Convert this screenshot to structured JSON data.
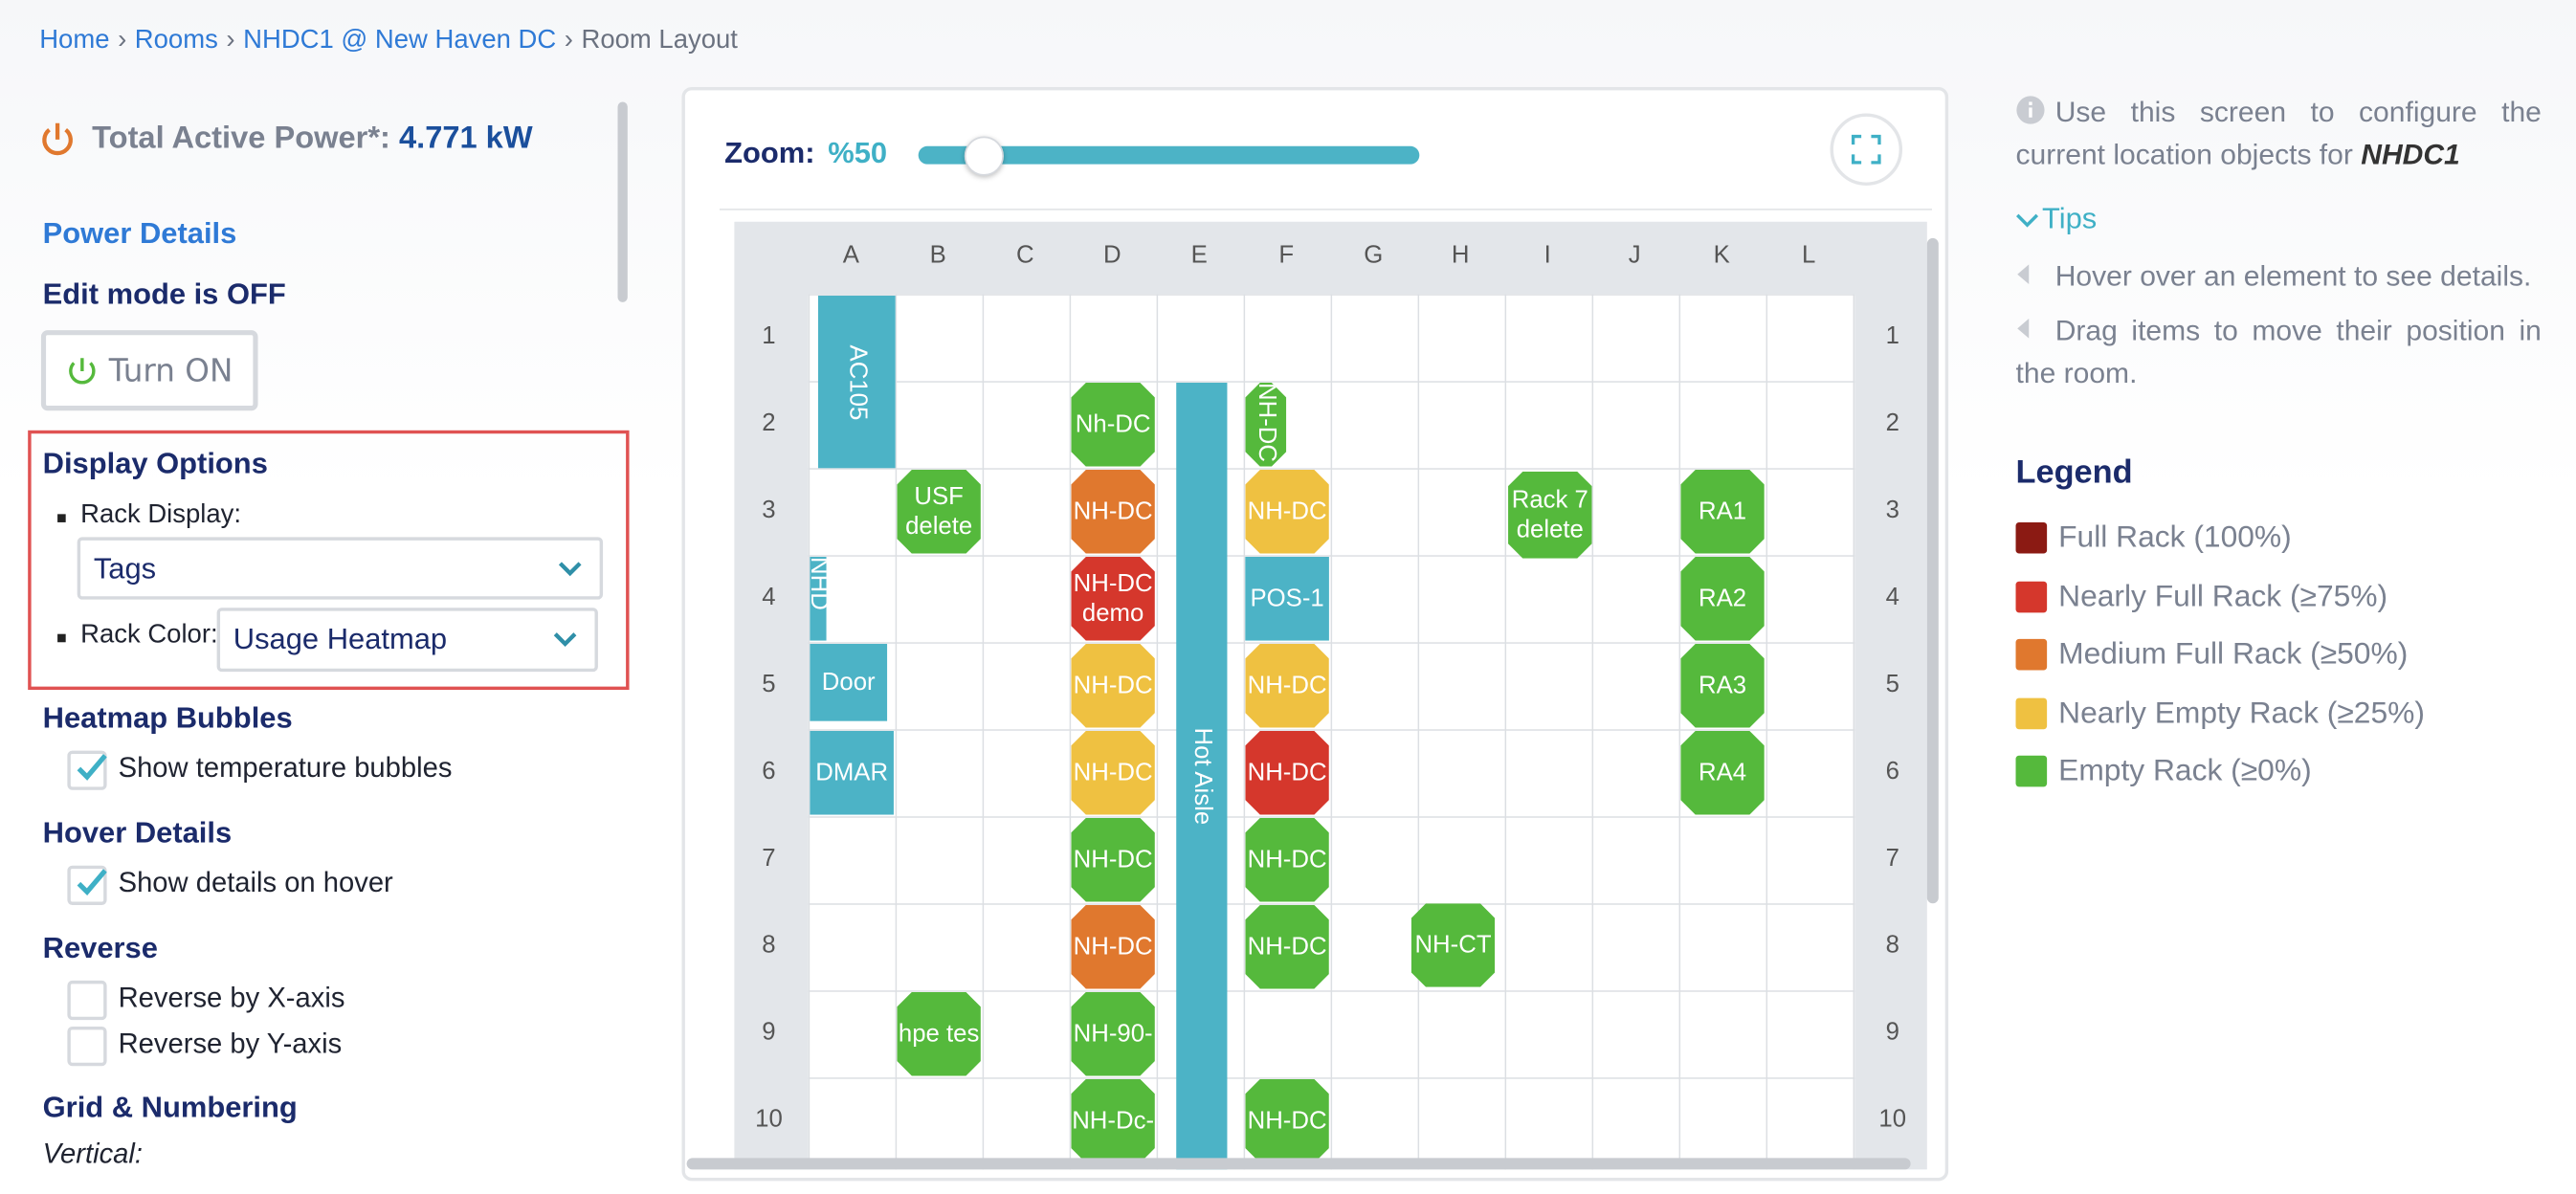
{
  "breadcrumb": {
    "items": [
      "Home",
      "Rooms",
      "NHDC1 @ New Haven DC",
      "Room Layout"
    ],
    "separator": "›"
  },
  "sidebar": {
    "power_label": "Total Active Power*:",
    "power_value": "4.771 kW",
    "power_details": "Power Details",
    "edit_mode": "Edit mode is OFF",
    "edit_button": "Turn ON",
    "display_options": {
      "title": "Display Options",
      "rack_display_label": "Rack Display:",
      "rack_display_value": "Tags",
      "rack_color_label": "Rack Color:",
      "rack_color_value": "Usage Heatmap"
    },
    "sections": [
      {
        "title": "Heatmap Bubbles",
        "options": [
          {
            "label": "Show temperature bubbles",
            "checked": true
          }
        ]
      },
      {
        "title": "Hover Details",
        "options": [
          {
            "label": "Show details on hover",
            "checked": true
          }
        ]
      },
      {
        "title": "Reverse",
        "options": [
          {
            "label": "Reverse by X-axis",
            "checked": false
          },
          {
            "label": "Reverse by Y-axis",
            "checked": false
          }
        ]
      }
    ],
    "grid_title": "Grid & Numbering",
    "vertical_label": "Vertical:"
  },
  "room": {
    "zoom_label": "Zoom:",
    "zoom_value": "%50",
    "columns": [
      "A",
      "B",
      "C",
      "D",
      "E",
      "F",
      "G",
      "H",
      "I",
      "J",
      "K",
      "L"
    ],
    "rows": [
      1,
      2,
      3,
      4,
      5,
      6,
      7,
      8,
      9,
      10
    ],
    "objects": [
      {
        "label": "AC105",
        "color": "#4cb3c6"
      },
      {
        "label": "Nh-DC",
        "color": "#55b93c"
      },
      {
        "label": "NH-DC",
        "color": "#55b93c"
      },
      {
        "label": "USF\ndelete",
        "color": "#55b93c"
      },
      {
        "label": "NH-DC",
        "color": "#e0782e"
      },
      {
        "label": "NH-DC",
        "color": "#efc141"
      },
      {
        "label": "Rack 7\ndelete",
        "color": "#55b93c"
      },
      {
        "label": "RA1",
        "color": "#55b93c"
      },
      {
        "label": "NHD",
        "color": "#4cb3c6"
      },
      {
        "label": "NH-DC\ndemo",
        "color": "#d5372c"
      },
      {
        "label": "POS-1",
        "color": "#4cb3c6"
      },
      {
        "label": "RA2",
        "color": "#55b93c"
      },
      {
        "label": "Door",
        "color": "#4cb3c6"
      },
      {
        "label": "NH-DC",
        "color": "#efc141"
      },
      {
        "label": "NH-DC",
        "color": "#efc141"
      },
      {
        "label": "RA3",
        "color": "#55b93c"
      },
      {
        "label": "DMAR",
        "color": "#4cb3c6"
      },
      {
        "label": "NH-DC",
        "color": "#efc141"
      },
      {
        "label": "NH-DC",
        "color": "#d5372c"
      },
      {
        "label": "RA4",
        "color": "#55b93c"
      },
      {
        "label": "NH-DC",
        "color": "#55b93c"
      },
      {
        "label": "NH-DC",
        "color": "#55b93c"
      },
      {
        "label": "NH-DC",
        "color": "#e0782e"
      },
      {
        "label": "NH-DC",
        "color": "#55b93c"
      },
      {
        "label": "NH-CT",
        "color": "#55b93c"
      },
      {
        "label": "hpe tes",
        "color": "#55b93c"
      },
      {
        "label": "NH-90-",
        "color": "#55b93c"
      },
      {
        "label": "NH-Dc-",
        "color": "#55b93c"
      },
      {
        "label": "NH-DC",
        "color": "#55b93c"
      },
      {
        "label": "Hot Aisle",
        "color": "#4cb3c6"
      }
    ]
  },
  "help": {
    "info_text": "Use this screen to configure the current location objects for",
    "location": "NHDC1",
    "tips_title": "Tips",
    "tips": [
      "Hover over an element to see details.",
      "Drag items to move their position in the room."
    ]
  },
  "legend": {
    "title": "Legend",
    "items": [
      {
        "label": "Full Rack (100%)",
        "color": "#8b1a13"
      },
      {
        "label": "Nearly Full Rack (≥75%)",
        "color": "#d5372c"
      },
      {
        "label": "Medium Full Rack (≥50%)",
        "color": "#e0782e"
      },
      {
        "label": "Nearly Empty Rack (≥25%)",
        "color": "#efc141"
      },
      {
        "label": "Empty Rack (≥0%)",
        "color": "#55b93c"
      }
    ]
  }
}
